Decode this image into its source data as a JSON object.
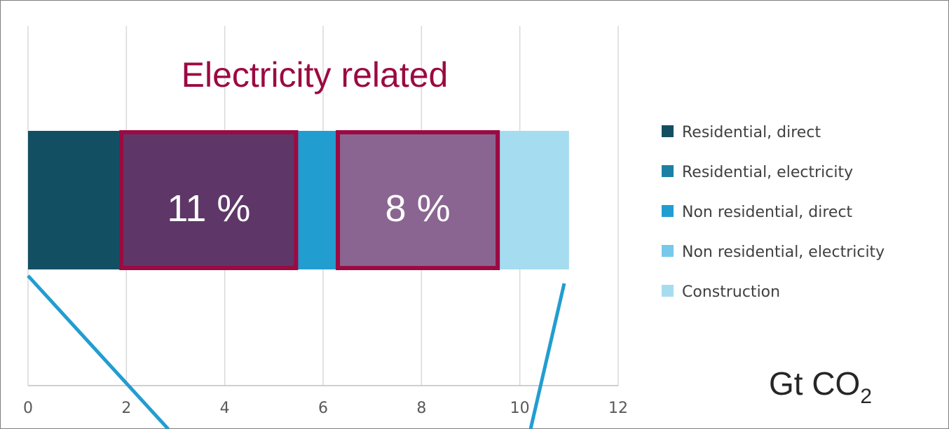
{
  "chart_data": {
    "type": "bar",
    "orientation": "horizontal",
    "stacked": true,
    "title": "Electricity related",
    "xlim": [
      0,
      12
    ],
    "xticks": [
      "0",
      "2",
      "4",
      "6",
      "8",
      "10",
      "12"
    ],
    "unit_main": "Gt CO",
    "unit_sub": "2",
    "grid": true,
    "legend_position": "right",
    "series": [
      {
        "name": "Residential, direct",
        "value": 1.9,
        "color": "#134f63"
      },
      {
        "name": "Residential, electricity",
        "value": 3.5,
        "color": "#1d7fa3"
      },
      {
        "name": "Non residential, direct",
        "value": 0.9,
        "color": "#229dd0"
      },
      {
        "name": "Non residential, electricity",
        "value": 3.3,
        "color": "#77c9ea"
      },
      {
        "name": "Construction",
        "value": 1.4,
        "color": "#a6dcf0"
      }
    ],
    "highlights": [
      {
        "label": "11 %",
        "from": 1.9,
        "to": 5.45,
        "fill": "#5e3768",
        "border": "#9b0a42"
      },
      {
        "label": "8 %",
        "from": 6.3,
        "to": 9.55,
        "fill": "#8a6591",
        "border": "#9b0a42"
      }
    ]
  }
}
